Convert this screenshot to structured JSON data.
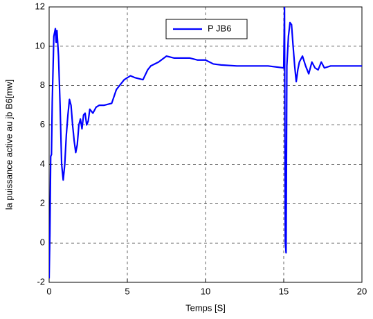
{
  "chart_data": {
    "type": "line",
    "xlabel": "Temps [S]",
    "ylabel": "la puissance active au jb B6[mw]",
    "x": [
      0,
      0.05,
      0.1,
      0.15,
      0.2,
      0.3,
      0.4,
      0.45,
      0.5,
      0.6,
      0.7,
      0.8,
      0.9,
      1.0,
      1.1,
      1.2,
      1.3,
      1.4,
      1.5,
      1.6,
      1.7,
      1.8,
      1.9,
      2.0,
      2.1,
      2.2,
      2.3,
      2.4,
      2.5,
      2.6,
      2.8,
      3.0,
      3.2,
      3.5,
      4.0,
      4.3,
      4.8,
      5.2,
      5.5,
      6.0,
      6.3,
      6.5,
      7.0,
      7.5,
      8.0,
      8.5,
      9.0,
      9.5,
      10,
      10.5,
      11,
      12,
      13,
      14,
      15.0,
      15.05,
      15.1,
      15.15,
      15.2,
      15.3,
      15.4,
      15.5,
      15.6,
      15.7,
      15.8,
      15.9,
      16.0,
      16.2,
      16.4,
      16.6,
      16.8,
      17.0,
      17.2,
      17.4,
      17.6,
      18,
      18.5,
      19,
      20
    ],
    "series": [
      {
        "name": "P JB6",
        "color": "#0000ff",
        "values": [
          -1.8,
          0.5,
          4.4,
          4.5,
          7.2,
          10.5,
          10.9,
          10.2,
          10.8,
          9.5,
          7,
          4,
          3.2,
          4,
          5.5,
          6.5,
          7.3,
          7,
          6,
          5.2,
          4.6,
          5,
          6,
          6.3,
          5.8,
          6.5,
          6.6,
          6.0,
          6.2,
          6.8,
          6.6,
          6.9,
          7.0,
          7.0,
          7.1,
          7.8,
          8.3,
          8.5,
          8.4,
          8.3,
          8.8,
          9.0,
          9.2,
          9.5,
          9.4,
          9.4,
          9.4,
          9.3,
          9.3,
          9.1,
          9.05,
          9.0,
          9.0,
          9.0,
          8.9,
          12,
          0,
          -0.5,
          9,
          10.5,
          11.2,
          11.1,
          10,
          9,
          8.2,
          8.8,
          9.2,
          9.5,
          9.0,
          8.6,
          9.2,
          8.9,
          8.8,
          9.2,
          8.9,
          9.0,
          9.0,
          9.0,
          9.0
        ]
      }
    ],
    "xlim": [
      0,
      20
    ],
    "xticks": [
      0,
      5,
      10,
      15,
      20
    ],
    "ylim": [
      -2,
      12
    ],
    "yticks": [
      -2,
      0,
      2,
      4,
      6,
      8,
      10,
      12
    ],
    "grid": true,
    "legend": "top"
  }
}
